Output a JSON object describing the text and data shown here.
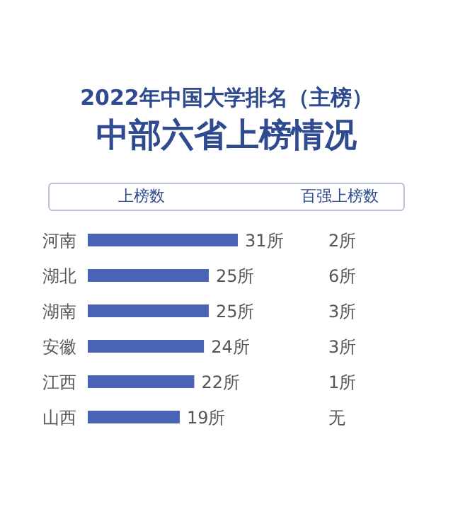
{
  "chart_data": {
    "type": "bar",
    "orientation": "horizontal",
    "title": "2022年中国大学排名（主榜）",
    "subtitle": "中部六省上榜情况",
    "categories": [
      "河南",
      "湖北",
      "湖南",
      "安徽",
      "江西",
      "山西"
    ],
    "values": [
      31,
      25,
      25,
      24,
      22,
      19
    ],
    "color": "#4a64b5",
    "value_labels": [
      "31所",
      "25所",
      "25所",
      "24所",
      "22所",
      "19所"
    ],
    "tick_labels": "y",
    "grid": false,
    "legend": false,
    "annotations": [
      "上榜数",
      "百强上榜数",
      "2所",
      "6所",
      "3所",
      "3所",
      "1所",
      "无"
    ]
  }
}
